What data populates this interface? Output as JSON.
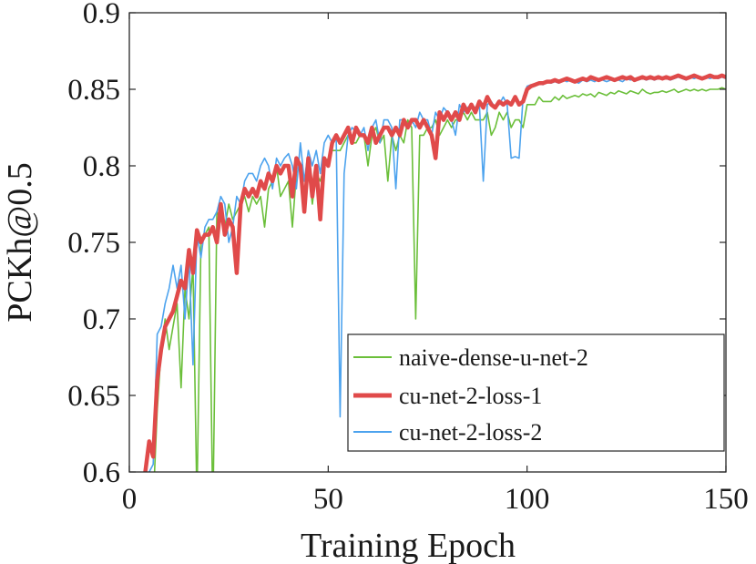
{
  "chart_data": {
    "type": "line",
    "title": "",
    "xlabel": "Training Epoch",
    "ylabel": "PCKh@0.5",
    "xlim": [
      0,
      150
    ],
    "ylim": [
      0.6,
      0.9
    ],
    "xticks": [
      0,
      50,
      100,
      150
    ],
    "xtick_labels": [
      "0",
      "50",
      "100",
      "150"
    ],
    "yticks": [
      0.6,
      0.65,
      0.7,
      0.75,
      0.8,
      0.85,
      0.9
    ],
    "ytick_labels": [
      "0.6",
      "0.65",
      "0.7",
      "0.75",
      "0.8",
      "0.85",
      "0.9"
    ],
    "grid": false,
    "legend_position": "bottom-right",
    "series": [
      {
        "name": "naive-dense-u-net-2",
        "color": "#6bbf3a",
        "x": [
          4,
          5,
          6,
          7,
          8,
          9,
          10,
          11,
          12,
          13,
          14,
          15,
          16,
          17,
          18,
          19,
          20,
          21,
          22,
          23,
          24,
          25,
          26,
          27,
          28,
          29,
          30,
          31,
          32,
          33,
          34,
          35,
          36,
          37,
          38,
          39,
          40,
          41,
          42,
          43,
          44,
          45,
          46,
          47,
          48,
          49,
          50,
          51,
          52,
          53,
          54,
          55,
          56,
          57,
          58,
          59,
          60,
          61,
          62,
          63,
          64,
          65,
          66,
          67,
          68,
          69,
          70,
          71,
          72,
          73,
          74,
          75,
          76,
          77,
          78,
          79,
          80,
          81,
          82,
          83,
          84,
          85,
          86,
          87,
          88,
          89,
          90,
          91,
          92,
          93,
          94,
          95,
          96,
          97,
          98,
          99,
          100,
          101,
          102,
          103,
          104,
          105,
          106,
          107,
          108,
          109,
          110,
          111,
          112,
          113,
          114,
          115,
          116,
          117,
          118,
          119,
          120,
          121,
          122,
          123,
          124,
          125,
          126,
          127,
          128,
          129,
          130,
          131,
          132,
          133,
          134,
          135,
          136,
          137,
          138,
          139,
          140,
          141,
          142,
          143,
          144,
          145,
          146,
          147,
          148,
          149,
          150
        ],
        "y": [
          0.58,
          0.6,
          0.58,
          0.64,
          0.68,
          0.7,
          0.68,
          0.695,
          0.71,
          0.655,
          0.72,
          0.7,
          0.735,
          0.58,
          0.75,
          0.755,
          0.76,
          0.57,
          0.77,
          0.765,
          0.76,
          0.775,
          0.765,
          0.77,
          0.775,
          0.78,
          0.77,
          0.78,
          0.775,
          0.78,
          0.76,
          0.785,
          0.79,
          0.8,
          0.78,
          0.785,
          0.79,
          0.76,
          0.795,
          0.8,
          0.79,
          0.8,
          0.775,
          0.795,
          0.79,
          0.8,
          0.805,
          0.81,
          0.81,
          0.81,
          0.815,
          0.82,
          0.815,
          0.815,
          0.82,
          0.82,
          0.8,
          0.82,
          0.825,
          0.815,
          0.82,
          0.79,
          0.82,
          0.81,
          0.82,
          0.815,
          0.83,
          0.825,
          0.7,
          0.82,
          0.82,
          0.825,
          0.825,
          0.83,
          0.82,
          0.825,
          0.83,
          0.825,
          0.83,
          0.83,
          0.835,
          0.83,
          0.835,
          0.83,
          0.83,
          0.83,
          0.835,
          0.82,
          0.825,
          0.835,
          0.83,
          0.835,
          0.825,
          0.83,
          0.83,
          0.825,
          0.84,
          0.84,
          0.84,
          0.845,
          0.842,
          0.842,
          0.842,
          0.845,
          0.843,
          0.846,
          0.844,
          0.845,
          0.846,
          0.845,
          0.847,
          0.846,
          0.847,
          0.845,
          0.848,
          0.847,
          0.846,
          0.848,
          0.847,
          0.849,
          0.848,
          0.847,
          0.849,
          0.848,
          0.847,
          0.85,
          0.848,
          0.847,
          0.848,
          0.848,
          0.849,
          0.848,
          0.849,
          0.85,
          0.848,
          0.849,
          0.85,
          0.849,
          0.85,
          0.849,
          0.85,
          0.849,
          0.85,
          0.85,
          0.85,
          0.851,
          0.85
        ]
      },
      {
        "name": "cu-net-2-loss-1",
        "color": "#e04a4a",
        "x": [
          4,
          5,
          6,
          7,
          8,
          9,
          10,
          11,
          12,
          13,
          14,
          15,
          16,
          17,
          18,
          19,
          20,
          21,
          22,
          23,
          24,
          25,
          26,
          27,
          28,
          29,
          30,
          31,
          32,
          33,
          34,
          35,
          36,
          37,
          38,
          39,
          40,
          41,
          42,
          43,
          44,
          45,
          46,
          47,
          48,
          49,
          50,
          51,
          52,
          53,
          54,
          55,
          56,
          57,
          58,
          59,
          60,
          61,
          62,
          63,
          64,
          65,
          66,
          67,
          68,
          69,
          70,
          71,
          72,
          73,
          74,
          75,
          76,
          77,
          78,
          79,
          80,
          81,
          82,
          83,
          84,
          85,
          86,
          87,
          88,
          89,
          90,
          91,
          92,
          93,
          94,
          95,
          96,
          97,
          98,
          99,
          100,
          101,
          102,
          103,
          104,
          105,
          106,
          107,
          108,
          109,
          110,
          111,
          112,
          113,
          114,
          115,
          116,
          117,
          118,
          119,
          120,
          121,
          122,
          123,
          124,
          125,
          126,
          127,
          128,
          129,
          130,
          131,
          132,
          133,
          134,
          135,
          136,
          137,
          138,
          139,
          140,
          141,
          142,
          143,
          144,
          145,
          146,
          147,
          148,
          149,
          150
        ],
        "y": [
          0.6,
          0.62,
          0.61,
          0.66,
          0.68,
          0.695,
          0.7,
          0.705,
          0.715,
          0.725,
          0.72,
          0.745,
          0.73,
          0.758,
          0.75,
          0.755,
          0.755,
          0.76,
          0.75,
          0.775,
          0.755,
          0.765,
          0.76,
          0.73,
          0.775,
          0.785,
          0.78,
          0.785,
          0.78,
          0.79,
          0.785,
          0.795,
          0.79,
          0.8,
          0.795,
          0.8,
          0.8,
          0.78,
          0.805,
          0.8,
          0.77,
          0.805,
          0.78,
          0.8,
          0.765,
          0.805,
          0.8,
          0.815,
          0.82,
          0.815,
          0.82,
          0.825,
          0.815,
          0.825,
          0.82,
          0.82,
          0.815,
          0.825,
          0.815,
          0.82,
          0.825,
          0.825,
          0.82,
          0.825,
          0.82,
          0.83,
          0.825,
          0.83,
          0.83,
          0.825,
          0.83,
          0.825,
          0.82,
          0.805,
          0.835,
          0.83,
          0.835,
          0.83,
          0.835,
          0.83,
          0.84,
          0.835,
          0.84,
          0.835,
          0.842,
          0.838,
          0.845,
          0.84,
          0.838,
          0.842,
          0.84,
          0.842,
          0.84,
          0.845,
          0.84,
          0.842,
          0.85,
          0.852,
          0.853,
          0.854,
          0.854,
          0.855,
          0.855,
          0.856,
          0.855,
          0.856,
          0.857,
          0.856,
          0.855,
          0.856,
          0.857,
          0.856,
          0.858,
          0.857,
          0.856,
          0.857,
          0.858,
          0.857,
          0.856,
          0.857,
          0.858,
          0.857,
          0.858,
          0.856,
          0.857,
          0.858,
          0.857,
          0.858,
          0.857,
          0.858,
          0.857,
          0.858,
          0.857,
          0.858,
          0.859,
          0.858,
          0.857,
          0.858,
          0.859,
          0.858,
          0.857,
          0.858,
          0.859,
          0.858,
          0.858,
          0.859,
          0.858
        ]
      },
      {
        "name": "cu-net-2-loss-2",
        "color": "#4da3ee",
        "x": [
          4,
          5,
          6,
          7,
          8,
          9,
          10,
          11,
          12,
          13,
          14,
          15,
          16,
          17,
          18,
          19,
          20,
          21,
          22,
          23,
          24,
          25,
          26,
          27,
          28,
          29,
          30,
          31,
          32,
          33,
          34,
          35,
          36,
          37,
          38,
          39,
          40,
          41,
          42,
          43,
          44,
          45,
          46,
          47,
          48,
          49,
          50,
          51,
          52,
          53,
          54,
          55,
          56,
          57,
          58,
          59,
          60,
          61,
          62,
          63,
          64,
          65,
          66,
          67,
          68,
          69,
          70,
          71,
          72,
          73,
          74,
          75,
          76,
          77,
          78,
          79,
          80,
          81,
          82,
          83,
          84,
          85,
          86,
          87,
          88,
          89,
          90,
          91,
          92,
          93,
          94,
          95,
          96,
          97,
          98,
          99,
          100,
          101,
          102,
          103,
          104,
          105,
          106,
          107,
          108,
          109,
          110,
          111,
          112,
          113,
          114,
          115,
          116,
          117,
          118,
          119,
          120,
          121,
          122,
          123,
          124,
          125,
          126,
          127,
          128,
          129,
          130,
          131,
          132,
          133,
          134,
          135,
          136,
          137,
          138,
          139,
          140,
          141,
          142,
          143,
          144,
          145,
          146,
          147,
          148,
          149,
          150
        ],
        "y": [
          0.58,
          0.6,
          0.605,
          0.69,
          0.695,
          0.71,
          0.72,
          0.735,
          0.72,
          0.735,
          0.7,
          0.74,
          0.67,
          0.755,
          0.74,
          0.76,
          0.765,
          0.765,
          0.77,
          0.78,
          0.775,
          0.75,
          0.76,
          0.78,
          0.775,
          0.79,
          0.795,
          0.795,
          0.79,
          0.8,
          0.805,
          0.8,
          0.785,
          0.805,
          0.8,
          0.805,
          0.808,
          0.8,
          0.785,
          0.815,
          0.79,
          0.81,
          0.8,
          0.81,
          0.795,
          0.815,
          0.82,
          0.815,
          0.82,
          0.636,
          0.795,
          0.82,
          0.825,
          0.822,
          0.82,
          0.825,
          0.81,
          0.825,
          0.83,
          0.815,
          0.83,
          0.83,
          0.825,
          0.785,
          0.83,
          0.83,
          0.826,
          0.83,
          0.825,
          0.835,
          0.83,
          0.83,
          0.82,
          0.835,
          0.83,
          0.838,
          0.835,
          0.83,
          0.82,
          0.84,
          0.835,
          0.838,
          0.84,
          0.838,
          0.84,
          0.79,
          0.84,
          0.842,
          0.838,
          0.84,
          0.845,
          0.84,
          0.805,
          0.806,
          0.805,
          0.845,
          0.852,
          0.853,
          0.852,
          0.854,
          0.853,
          0.855,
          0.854,
          0.855,
          0.854,
          0.856,
          0.855,
          0.856,
          0.855,
          0.854,
          0.856,
          0.855,
          0.856,
          0.855,
          0.857,
          0.856,
          0.855,
          0.856,
          0.857,
          0.856,
          0.855,
          0.857,
          0.856,
          0.857,
          0.856,
          0.857,
          0.856,
          0.857,
          0.856,
          0.857,
          0.858,
          0.857,
          0.856,
          0.857,
          0.858,
          0.857,
          0.856,
          0.858,
          0.857,
          0.858,
          0.857,
          0.858,
          0.857,
          0.858,
          0.857,
          0.858,
          0.857
        ]
      }
    ]
  }
}
